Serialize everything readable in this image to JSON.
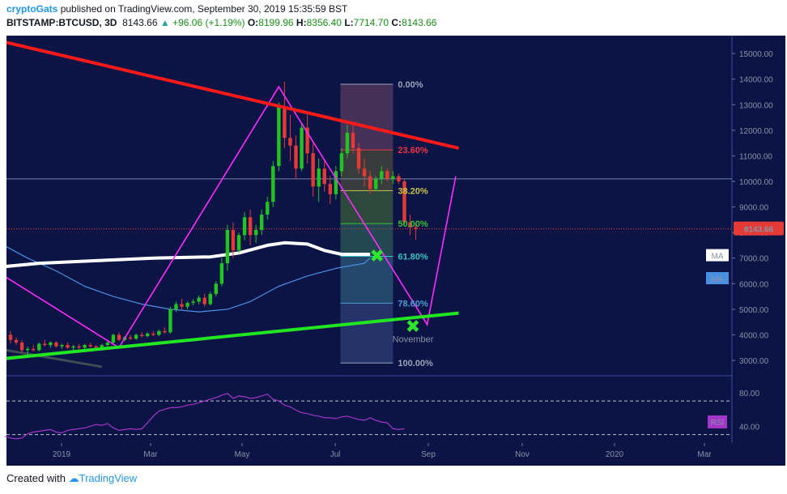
{
  "header": {
    "author": "cryptoGats",
    "published_text": " published on TradingView.com, September 30, 2019 15:35:59 BST",
    "symbol": "BITSTAMP:BTCUSD, 3D",
    "price": "8143.66",
    "change": "+96.06 (+1.19%)",
    "open_label": "O:",
    "open": "8199.96",
    "high_label": "H:",
    "high": "8356.40",
    "low_label": "L:",
    "low": "7714.70",
    "close_label": "C:",
    "close": "8143.66"
  },
  "footer": {
    "created_with": "Created with",
    "brand": "TradingView"
  },
  "colors": {
    "background": "#0b1445",
    "up": "#21c421",
    "down": "#e53935",
    "resistance": "#ff1a1a",
    "support": "#22e622",
    "projection": "#ff2bff",
    "ma_slow": "#ffffff",
    "ma_fast": "#4a90e2",
    "rsi": "#a335c8"
  },
  "chart_data": {
    "type": "candlestick",
    "y_axis": {
      "ticks": [
        "15000.00",
        "14000.00",
        "13000.00",
        "12000.00",
        "11000.00",
        "10000.00",
        "9000.00",
        "8000.00",
        "7000.00",
        "6000.00",
        "5000.00",
        "4000.00",
        "3000.00"
      ],
      "ylim": [
        2400,
        15700
      ]
    },
    "x_axis": {
      "ticks": [
        "2019",
        "Mar",
        "May",
        "Jul",
        "Sep",
        "Nov",
        "2020",
        "Mar"
      ]
    },
    "current_price": {
      "value": 8143.66,
      "label": "8143.66"
    },
    "candles": [
      [
        0,
        4000,
        4150,
        3650,
        3800
      ],
      [
        1,
        3800,
        3900,
        3600,
        3700
      ],
      [
        2,
        3700,
        3800,
        3300,
        3400
      ],
      [
        3,
        3400,
        3550,
        3200,
        3450
      ],
      [
        4,
        3450,
        3600,
        3350,
        3400
      ],
      [
        5,
        3400,
        3700,
        3350,
        3650
      ],
      [
        6,
        3650,
        3800,
        3550,
        3600
      ],
      [
        7,
        3600,
        3750,
        3500,
        3700
      ],
      [
        8,
        3700,
        3750,
        3500,
        3550
      ],
      [
        9,
        3550,
        3650,
        3450,
        3600
      ],
      [
        10,
        3600,
        3700,
        3450,
        3500
      ],
      [
        11,
        3500,
        3600,
        3400,
        3550
      ],
      [
        12,
        3550,
        3650,
        3450,
        3500
      ],
      [
        13,
        3500,
        3650,
        3450,
        3600
      ],
      [
        14,
        3600,
        3700,
        3500,
        3550
      ],
      [
        15,
        3550,
        3600,
        3450,
        3500
      ],
      [
        16,
        3500,
        3650,
        3450,
        3600
      ],
      [
        17,
        3600,
        3750,
        3550,
        3700
      ],
      [
        18,
        3700,
        4050,
        3650,
        4000
      ],
      [
        19,
        4000,
        4100,
        3750,
        3800
      ],
      [
        20,
        3800,
        3950,
        3750,
        3900
      ],
      [
        21,
        3900,
        4000,
        3800,
        3850
      ],
      [
        22,
        3850,
        4050,
        3800,
        4000
      ],
      [
        23,
        4000,
        4100,
        3900,
        3950
      ],
      [
        24,
        3950,
        4100,
        3900,
        4050
      ],
      [
        25,
        4050,
        4150,
        3950,
        4000
      ],
      [
        26,
        4000,
        4200,
        3950,
        4150
      ],
      [
        27,
        4150,
        4300,
        4050,
        4100
      ],
      [
        28,
        4100,
        5100,
        4050,
        5000
      ],
      [
        29,
        5000,
        5300,
        4900,
        5200
      ],
      [
        30,
        5200,
        5400,
        5000,
        5100
      ],
      [
        31,
        5100,
        5300,
        5000,
        5250
      ],
      [
        32,
        5250,
        5400,
        5150,
        5300
      ],
      [
        33,
        5300,
        5550,
        5200,
        5450
      ],
      [
        34,
        5450,
        5600,
        5100,
        5200
      ],
      [
        35,
        5200,
        5700,
        5150,
        5600
      ],
      [
        36,
        5600,
        6100,
        5500,
        6000
      ],
      [
        37,
        6000,
        7000,
        5900,
        6800
      ],
      [
        38,
        6800,
        8300,
        6500,
        8100
      ],
      [
        39,
        8100,
        8400,
        7000,
        7300
      ],
      [
        40,
        7300,
        8000,
        7200,
        7900
      ],
      [
        41,
        7900,
        8800,
        7700,
        8600
      ],
      [
        42,
        8600,
        8900,
        7500,
        7900
      ],
      [
        43,
        7900,
        8300,
        7600,
        8100
      ],
      [
        44,
        8100,
        8900,
        7900,
        8700
      ],
      [
        45,
        8700,
        9400,
        8500,
        9200
      ],
      [
        46,
        9200,
        10800,
        9000,
        10600
      ],
      [
        47,
        10600,
        13100,
        10400,
        12900
      ],
      [
        48,
        12900,
        13900,
        11300,
        11700
      ],
      [
        49,
        11700,
        12600,
        10800,
        11400
      ],
      [
        50,
        11400,
        11800,
        10100,
        10500
      ],
      [
        51,
        10500,
        12300,
        10400,
        12100
      ],
      [
        52,
        12100,
        12600,
        10700,
        11100
      ],
      [
        53,
        11100,
        11500,
        9400,
        9800
      ],
      [
        54,
        9800,
        10900,
        9200,
        10500
      ],
      [
        55,
        10500,
        10800,
        9600,
        9900
      ],
      [
        56,
        9900,
        10200,
        9100,
        9500
      ],
      [
        57,
        9500,
        10600,
        9300,
        10400
      ],
      [
        58,
        10400,
        11300,
        10200,
        11100
      ],
      [
        59,
        11100,
        12200,
        10900,
        11900
      ],
      [
        60,
        11900,
        12300,
        11100,
        11300
      ],
      [
        61,
        11300,
        11500,
        10300,
        10500
      ],
      [
        62,
        10500,
        10900,
        9800,
        10200
      ],
      [
        63,
        10200,
        10400,
        9500,
        9700
      ],
      [
        64,
        9700,
        10200,
        9600,
        10100
      ],
      [
        65,
        10100,
        10600,
        9900,
        10400
      ],
      [
        66,
        10400,
        10500,
        10000,
        10100
      ],
      [
        67,
        10100,
        10400,
        9900,
        10200
      ],
      [
        68,
        10200,
        10300,
        9900,
        10000
      ],
      [
        69,
        10000,
        10100,
        8300,
        8400
      ],
      [
        70,
        8400,
        8700,
        7900,
        8200
      ],
      [
        71,
        8200,
        8360,
        7715,
        8144
      ]
    ],
    "resistance_line": [
      [
        -2,
        15500
      ],
      [
        78.5,
        11300
      ]
    ],
    "support_line": [
      [
        -2,
        3050
      ],
      [
        78.5,
        4850
      ]
    ],
    "support_trail_line": [
      [
        -2,
        3450
      ],
      [
        16,
        2750
      ]
    ],
    "projection_path": [
      [
        -4,
        6700
      ],
      [
        19,
        3500
      ],
      [
        47,
        13700
      ],
      [
        73,
        4400
      ],
      [
        78,
        10200
      ]
    ],
    "projection_markers": [
      {
        "x": 64.2,
        "y": 7100,
        "label": "✖"
      },
      {
        "x": 70.5,
        "y": 4350,
        "label": "✖",
        "note": "November"
      }
    ],
    "ma_slow": {
      "label": "MA",
      "points": [
        [
          -2,
          6650
        ],
        [
          5,
          6800
        ],
        [
          15,
          6900
        ],
        [
          25,
          7000
        ],
        [
          35,
          7050
        ],
        [
          40,
          7200
        ],
        [
          45,
          7500
        ],
        [
          48,
          7600
        ],
        [
          52,
          7550
        ],
        [
          55,
          7300
        ],
        [
          58,
          7150
        ],
        [
          63,
          7150
        ]
      ]
    },
    "ma_fast": {
      "label": "MA",
      "points": [
        [
          -2,
          7600
        ],
        [
          3,
          7000
        ],
        [
          8,
          6500
        ],
        [
          13,
          5900
        ],
        [
          18,
          5500
        ],
        [
          23,
          5200
        ],
        [
          28,
          5000
        ],
        [
          33,
          4900
        ],
        [
          38,
          5000
        ],
        [
          42,
          5300
        ],
        [
          47,
          5900
        ],
        [
          52,
          6300
        ],
        [
          57,
          6600
        ],
        [
          62,
          6800
        ],
        [
          63,
          7000
        ]
      ]
    },
    "fib_retracement": {
      "x_range": [
        57.8,
        67
      ],
      "levels": [
        {
          "ratio": "0.00%",
          "value": 13800,
          "color": "#9aa3b8",
          "fill": "#5a3a5e"
        },
        {
          "ratio": "23.60%",
          "value": 11230,
          "color": "#f23645",
          "fill": "#4a4a3a"
        },
        {
          "ratio": "38.20%",
          "value": 9640,
          "color": "#c7c34a",
          "fill": "#3a5a3a"
        },
        {
          "ratio": "50.00%",
          "value": 8350,
          "color": "#37c437",
          "fill": "#2e5a58"
        },
        {
          "ratio": "61.80%",
          "value": 7070,
          "color": "#37c4c4",
          "fill": "#2e5a78"
        },
        {
          "ratio": "78.60%",
          "value": 5240,
          "color": "#4a9ad8",
          "fill": "#2e3f78"
        },
        {
          "ratio": "100.00%",
          "value": 2900,
          "color": "#9aa3b8"
        }
      ]
    },
    "horizontal_line": {
      "value": 10100
    },
    "rsi": {
      "label": "RSI",
      "ticks": [
        "80.00",
        "40.00"
      ],
      "ylim": [
        20,
        100
      ],
      "bands": [
        70,
        30
      ],
      "values": [
        28,
        26,
        25,
        26,
        31,
        33,
        34,
        35,
        36,
        33,
        32,
        35,
        36,
        37,
        38,
        40,
        42,
        41,
        43,
        38,
        35,
        36,
        37,
        36,
        37,
        44,
        52,
        58,
        60,
        62,
        62,
        63,
        65,
        66,
        68,
        70,
        72,
        74,
        77,
        79,
        73,
        76,
        75,
        73,
        74,
        76,
        78,
        72,
        70,
        65,
        63,
        59,
        56,
        55,
        53,
        52,
        50,
        50,
        49,
        51,
        52,
        50,
        48,
        47,
        50,
        47,
        45,
        44,
        37,
        36,
        37
      ]
    }
  }
}
